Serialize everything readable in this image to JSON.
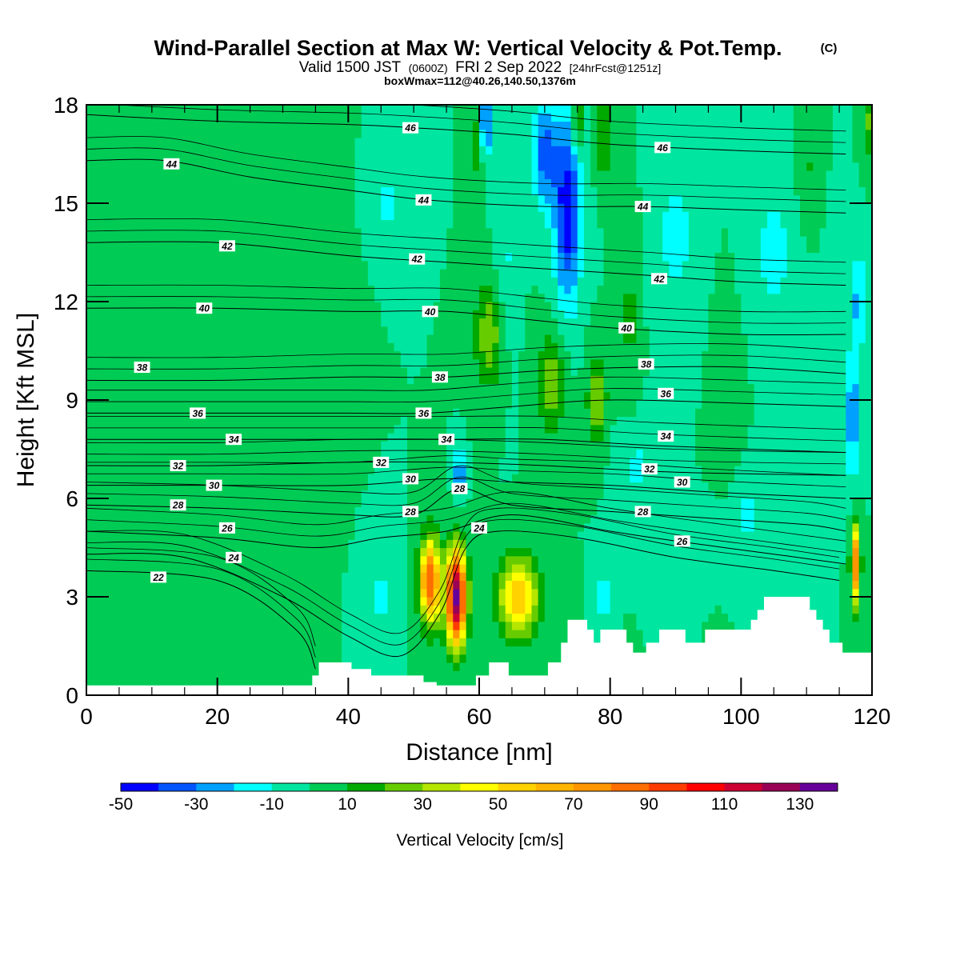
{
  "title": {
    "main": "Wind-Parallel Section at Max W: Vertical Velocity & Pot.Temp.",
    "copyright": "(C)",
    "valid_prefix": "Valid 1500 JST",
    "valid_z": "(0600Z)",
    "valid_date": "FRI 2 Sep 2022",
    "forecast": "[24hrFcst@1251z]",
    "box_info": "boxWmax=112@40.26,140.50,1376m"
  },
  "chart_data": {
    "type": "heatmap",
    "xlabel": "Distance [nm]",
    "ylabel": "Height [Kft MSL]",
    "xlim": [
      0,
      120
    ],
    "ylim": [
      0,
      18
    ],
    "x_ticks": [
      0,
      20,
      40,
      60,
      80,
      100,
      120
    ],
    "y_ticks": [
      0,
      3,
      6,
      9,
      12,
      15,
      18
    ],
    "colorbar": {
      "title": "Vertical Velocity [cm/s]",
      "levels": [
        -50,
        -40,
        -30,
        -20,
        -10,
        0,
        10,
        20,
        30,
        40,
        50,
        60,
        70,
        80,
        90,
        100,
        110,
        120,
        130,
        140
      ],
      "colors": [
        "#0000ff",
        "#0055ff",
        "#00a0ff",
        "#00ffff",
        "#00e6a0",
        "#00cc55",
        "#00aa00",
        "#66cc00",
        "#b4e600",
        "#ffff00",
        "#ffd200",
        "#ffb400",
        "#ff9600",
        "#ff6e00",
        "#ff3c00",
        "#ff0000",
        "#cc0033",
        "#990055",
        "#660099"
      ],
      "tick_labels": [
        "-50",
        "-30",
        "-10",
        "10",
        "30",
        "50",
        "70",
        "90",
        "110",
        "130"
      ],
      "tick_values": [
        -50,
        -30,
        -10,
        10,
        30,
        50,
        70,
        90,
        110,
        130
      ]
    },
    "background_value": 0,
    "w_features": [
      {
        "x": 52.5,
        "y": 3.5,
        "sx": 1.6,
        "sy": 1.3,
        "v": 90
      },
      {
        "x": 56.5,
        "y": 3.0,
        "sx": 1.5,
        "sy": 1.4,
        "v": 135
      },
      {
        "x": 66.0,
        "y": 3.0,
        "sx": 3.0,
        "sy": 1.2,
        "v": 62
      },
      {
        "x": 117.5,
        "y": 4.0,
        "sx": 0.7,
        "sy": 1.2,
        "v": 80
      },
      {
        "x": 73.5,
        "y": 14.8,
        "sx": 2.0,
        "sy": 2.8,
        "v": -48
      },
      {
        "x": 70.0,
        "y": 16.5,
        "sx": 2.0,
        "sy": 1.6,
        "v": -35
      },
      {
        "x": 61.0,
        "y": 17.5,
        "sx": 1.3,
        "sy": 1.0,
        "v": -35
      },
      {
        "x": 117.0,
        "y": 8.5,
        "sx": 1.0,
        "sy": 2.0,
        "v": -30
      },
      {
        "x": 118.0,
        "y": 12.0,
        "sx": 1.0,
        "sy": 1.5,
        "v": -25
      },
      {
        "x": 57.0,
        "y": 6.8,
        "sx": 0.8,
        "sy": 0.7,
        "v": -32
      },
      {
        "x": 79.0,
        "y": 3.0,
        "sx": 1.0,
        "sy": 0.8,
        "v": -20
      },
      {
        "x": 75.0,
        "y": 17.5,
        "sx": 0.6,
        "sy": 0.8,
        "v": 45
      },
      {
        "x": 59.5,
        "y": 17.0,
        "sx": 1.0,
        "sy": 1.2,
        "v": 25
      },
      {
        "x": 61.5,
        "y": 11.0,
        "sx": 2.2,
        "sy": 1.6,
        "v": 28
      },
      {
        "x": 71.0,
        "y": 9.5,
        "sx": 2.0,
        "sy": 1.5,
        "v": 28
      },
      {
        "x": 78.0,
        "y": 9.0,
        "sx": 1.5,
        "sy": 1.4,
        "v": 28
      },
      {
        "x": 79.0,
        "y": 17.0,
        "sx": 1.2,
        "sy": 1.2,
        "v": 22
      },
      {
        "x": 119.5,
        "y": 17.5,
        "sx": 0.8,
        "sy": 1.0,
        "v": 22
      },
      {
        "x": 46.0,
        "y": 15.0,
        "sx": 3.0,
        "sy": 1.2,
        "v": -12
      },
      {
        "x": 90.0,
        "y": 14.0,
        "sx": 3.5,
        "sy": 2.5,
        "v": -13
      },
      {
        "x": 105.0,
        "y": 13.5,
        "sx": 4.0,
        "sy": 2.5,
        "v": -13
      },
      {
        "x": 64.0,
        "y": 13.0,
        "sx": 1.5,
        "sy": 2.5,
        "v": -12
      },
      {
        "x": 84.0,
        "y": 7.0,
        "sx": 3.0,
        "sy": 1.5,
        "v": -12
      },
      {
        "x": 45.0,
        "y": 3.0,
        "sx": 2.0,
        "sy": 1.4,
        "v": -12
      },
      {
        "x": 101.0,
        "y": 5.5,
        "sx": 3.5,
        "sy": 1.5,
        "v": -12
      },
      {
        "x": 10.0,
        "y": 15.5,
        "sx": 4.0,
        "sy": 2.0,
        "v": 10
      },
      {
        "x": 25.0,
        "y": 14.0,
        "sx": 2.5,
        "sy": 2.5,
        "v": 10
      },
      {
        "x": 38.0,
        "y": 12.0,
        "sx": 2.5,
        "sy": 3.0,
        "v": 10
      },
      {
        "x": 23.0,
        "y": 6.5,
        "sx": 3.0,
        "sy": 2.0,
        "v": 10
      },
      {
        "x": 8.0,
        "y": 4.5,
        "sx": 3.0,
        "sy": 1.5,
        "v": 10
      },
      {
        "x": 34.0,
        "y": 5.5,
        "sx": 2.0,
        "sy": 2.0,
        "v": 10
      },
      {
        "x": 83.0,
        "y": 11.5,
        "sx": 1.5,
        "sy": 3.0,
        "v": 12
      },
      {
        "x": 98.0,
        "y": 9.0,
        "sx": 2.0,
        "sy": 3.0,
        "v": 10
      },
      {
        "x": 110.0,
        "y": 16.0,
        "sx": 1.5,
        "sy": 2.0,
        "v": 12
      }
    ],
    "terrain_profile": [
      [
        0,
        0.3
      ],
      [
        34.5,
        0.3
      ],
      [
        34.5,
        0.6
      ],
      [
        35.5,
        0.6
      ],
      [
        35.5,
        1.0
      ],
      [
        40.5,
        1.0
      ],
      [
        40.5,
        0.8
      ],
      [
        43.5,
        0.8
      ],
      [
        43.5,
        0.6
      ],
      [
        51.5,
        0.6
      ],
      [
        51.5,
        0.4
      ],
      [
        53.5,
        0.4
      ],
      [
        53.5,
        0.3
      ],
      [
        59.5,
        0.3
      ],
      [
        59.5,
        0.6
      ],
      [
        61.5,
        0.6
      ],
      [
        61.5,
        1.0
      ],
      [
        64.5,
        1.0
      ],
      [
        64.5,
        0.6
      ],
      [
        70.5,
        0.6
      ],
      [
        70.5,
        1.0
      ],
      [
        72.5,
        1.0
      ],
      [
        72.5,
        1.6
      ],
      [
        73.5,
        1.6
      ],
      [
        73.5,
        2.3
      ],
      [
        76.5,
        2.3
      ],
      [
        76.5,
        2.0
      ],
      [
        77.5,
        2.0
      ],
      [
        77.5,
        1.6
      ],
      [
        78.5,
        1.6
      ],
      [
        78.5,
        2.0
      ],
      [
        82.5,
        2.0
      ],
      [
        82.5,
        1.6
      ],
      [
        83.5,
        1.6
      ],
      [
        83.5,
        1.3
      ],
      [
        85.5,
        1.3
      ],
      [
        85.5,
        1.6
      ],
      [
        87.5,
        1.6
      ],
      [
        87.5,
        2.0
      ],
      [
        91.5,
        2.0
      ],
      [
        91.5,
        1.6
      ],
      [
        94.5,
        1.6
      ],
      [
        94.5,
        2.0
      ],
      [
        101.5,
        2.0
      ],
      [
        101.5,
        2.3
      ],
      [
        102.5,
        2.3
      ],
      [
        102.5,
        2.6
      ],
      [
        103.5,
        2.6
      ],
      [
        103.5,
        3.0
      ],
      [
        110.5,
        3.0
      ],
      [
        110.5,
        2.6
      ],
      [
        111.5,
        2.6
      ],
      [
        111.5,
        2.3
      ],
      [
        112.5,
        2.3
      ],
      [
        112.5,
        2.0
      ],
      [
        113.5,
        2.0
      ],
      [
        113.5,
        1.6
      ],
      [
        115.5,
        1.6
      ],
      [
        115.5,
        1.3
      ],
      [
        120,
        1.3
      ]
    ],
    "theta_contours": [
      {
        "level": 22,
        "pts": [
          [
            0,
            3.8
          ],
          [
            20,
            3.5
          ],
          [
            32,
            2.0
          ],
          [
            35,
            0.8
          ]
        ],
        "label_at": [
          11.0,
          3.6
        ]
      },
      {
        "level": 24,
        "pts": [
          [
            0,
            4.3
          ],
          [
            15,
            4.2
          ],
          [
            30,
            3.0
          ],
          [
            40,
            1.8
          ],
          [
            48,
            1.2
          ],
          [
            54,
            2.5
          ],
          [
            58,
            4.5
          ],
          [
            63,
            5.0
          ],
          [
            75,
            4.8
          ],
          [
            90,
            4.2
          ],
          [
            105,
            3.8
          ],
          [
            115,
            3.5
          ]
        ],
        "label_at": [
          60.0,
          5.1
        ]
      },
      {
        "level": 26,
        "pts": [
          [
            0,
            5.0
          ],
          [
            20,
            4.8
          ],
          [
            35,
            4.5
          ],
          [
            45,
            4.8
          ],
          [
            55,
            5.0
          ],
          [
            65,
            5.5
          ],
          [
            80,
            5.0
          ],
          [
            90,
            4.7
          ],
          [
            105,
            4.3
          ],
          [
            116,
            4.0
          ]
        ],
        "label_at": [
          91.0,
          4.7
        ]
      },
      {
        "level": 28,
        "pts": [
          [
            0,
            5.8
          ],
          [
            20,
            5.7
          ],
          [
            40,
            5.5
          ],
          [
            50,
            5.5
          ],
          [
            57,
            6.3
          ],
          [
            65,
            5.8
          ],
          [
            80,
            5.6
          ],
          [
            95,
            5.4
          ],
          [
            110,
            5.2
          ],
          [
            116,
            5.0
          ]
        ],
        "label_at": [
          85.0,
          5.6
        ]
      },
      {
        "level": 30,
        "pts": [
          [
            0,
            6.4
          ],
          [
            20,
            6.4
          ],
          [
            40,
            6.4
          ],
          [
            55,
            6.6
          ],
          [
            65,
            6.5
          ],
          [
            80,
            6.4
          ],
          [
            95,
            6.2
          ],
          [
            116,
            6.0
          ]
        ],
        "label_at": [
          49.0,
          6.6
        ]
      },
      {
        "level": 32,
        "pts": [
          [
            0,
            7.0
          ],
          [
            20,
            7.0
          ],
          [
            40,
            7.1
          ],
          [
            55,
            7.1
          ],
          [
            70,
            7.0
          ],
          [
            90,
            6.8
          ],
          [
            116,
            6.7
          ]
        ],
        "label_at": [
          45.0,
          7.1
        ]
      },
      {
        "level": 34,
        "pts": [
          [
            0,
            7.8
          ],
          [
            20,
            7.8
          ],
          [
            40,
            7.8
          ],
          [
            55,
            7.8
          ],
          [
            70,
            7.8
          ],
          [
            88,
            7.6
          ],
          [
            116,
            7.4
          ]
        ],
        "label_at": [
          55.0,
          7.8
        ]
      },
      {
        "level": 36,
        "pts": [
          [
            0,
            8.6
          ],
          [
            20,
            8.6
          ],
          [
            40,
            8.6
          ],
          [
            52,
            8.6
          ],
          [
            65,
            8.8
          ],
          [
            80,
            9.0
          ],
          [
            100,
            8.9
          ],
          [
            116,
            8.8
          ]
        ],
        "label_at": [
          89.0,
          9.1
        ]
      },
      {
        "level": 38,
        "pts": [
          [
            0,
            9.6
          ],
          [
            20,
            9.6
          ],
          [
            40,
            9.7
          ],
          [
            55,
            9.7
          ],
          [
            70,
            9.9
          ],
          [
            85,
            10.0
          ],
          [
            100,
            10.0
          ],
          [
            116,
            9.8
          ]
        ],
        "label_at": [
          54.0,
          9.7
        ]
      },
      {
        "level": 40,
        "pts": [
          [
            0,
            11.8
          ],
          [
            20,
            11.8
          ],
          [
            40,
            11.7
          ],
          [
            55,
            11.7
          ],
          [
            70,
            11.4
          ],
          [
            80,
            11.2
          ],
          [
            100,
            11.0
          ],
          [
            116,
            11.0
          ]
        ],
        "label_at": [
          18.0,
          11.8
        ]
      },
      {
        "level": 42,
        "pts": [
          [
            0,
            13.8
          ],
          [
            20,
            13.8
          ],
          [
            40,
            13.4
          ],
          [
            55,
            13.2
          ],
          [
            70,
            13.0
          ],
          [
            86,
            12.8
          ],
          [
            100,
            12.6
          ],
          [
            116,
            12.5
          ]
        ],
        "label_at": [
          51.0,
          13.2
        ]
      },
      {
        "level": 44,
        "pts": [
          [
            0,
            16.3
          ],
          [
            12,
            16.3
          ],
          [
            25,
            15.8
          ],
          [
            40,
            15.4
          ],
          [
            52,
            15.1
          ],
          [
            70,
            14.9
          ],
          [
            85,
            14.9
          ],
          [
            100,
            14.8
          ],
          [
            116,
            14.7
          ]
        ],
        "label_at": [
          86.0,
          14.9
        ]
      },
      {
        "level": 46,
        "pts": [
          [
            0,
            17.7
          ],
          [
            20,
            17.5
          ],
          [
            40,
            17.4
          ],
          [
            50,
            17.3
          ],
          [
            65,
            17.1
          ],
          [
            80,
            16.8
          ],
          [
            100,
            16.6
          ],
          [
            116,
            16.5
          ]
        ],
        "label_at": [
          88.0,
          16.7
        ]
      }
    ],
    "theta_labels": [
      {
        "text": "46",
        "x": 49.5,
        "y": 17.3
      },
      {
        "text": "46",
        "x": 88.0,
        "y": 16.7
      },
      {
        "text": "44",
        "x": 13.0,
        "y": 16.2
      },
      {
        "text": "44",
        "x": 51.5,
        "y": 15.1
      },
      {
        "text": "44",
        "x": 85.0,
        "y": 14.9
      },
      {
        "text": "42",
        "x": 21.5,
        "y": 13.7
      },
      {
        "text": "42",
        "x": 50.5,
        "y": 13.3
      },
      {
        "text": "42",
        "x": 87.5,
        "y": 12.7
      },
      {
        "text": "40",
        "x": 18.0,
        "y": 11.8
      },
      {
        "text": "40",
        "x": 52.5,
        "y": 11.7
      },
      {
        "text": "40",
        "x": 82.5,
        "y": 11.2
      },
      {
        "text": "38",
        "x": 8.5,
        "y": 10.0
      },
      {
        "text": "38",
        "x": 54.0,
        "y": 9.7
      },
      {
        "text": "38",
        "x": 85.5,
        "y": 10.1
      },
      {
        "text": "36",
        "x": 17.0,
        "y": 8.6
      },
      {
        "text": "36",
        "x": 51.5,
        "y": 8.6
      },
      {
        "text": "36",
        "x": 88.5,
        "y": 9.2
      },
      {
        "text": "34",
        "x": 22.5,
        "y": 7.8
      },
      {
        "text": "34",
        "x": 55.0,
        "y": 7.8
      },
      {
        "text": "34",
        "x": 88.5,
        "y": 7.9
      },
      {
        "text": "32",
        "x": 14.0,
        "y": 7.0
      },
      {
        "text": "32",
        "x": 45.0,
        "y": 7.1
      },
      {
        "text": "32",
        "x": 86.0,
        "y": 6.9
      },
      {
        "text": "30",
        "x": 19.5,
        "y": 6.4
      },
      {
        "text": "30",
        "x": 49.5,
        "y": 6.6
      },
      {
        "text": "30",
        "x": 91.0,
        "y": 6.5
      },
      {
        "text": "28",
        "x": 14.0,
        "y": 5.8
      },
      {
        "text": "28",
        "x": 57.0,
        "y": 6.3
      },
      {
        "text": "28",
        "x": 85.0,
        "y": 5.6
      },
      {
        "text": "28",
        "x": 49.5,
        "y": 5.6
      },
      {
        "text": "26",
        "x": 21.5,
        "y": 5.1
      },
      {
        "text": "26",
        "x": 91.0,
        "y": 4.7
      },
      {
        "text": "24",
        "x": 22.5,
        "y": 4.2
      },
      {
        "text": "24",
        "x": 60.0,
        "y": 5.1
      },
      {
        "text": "22",
        "x": 11.0,
        "y": 3.6
      }
    ]
  }
}
